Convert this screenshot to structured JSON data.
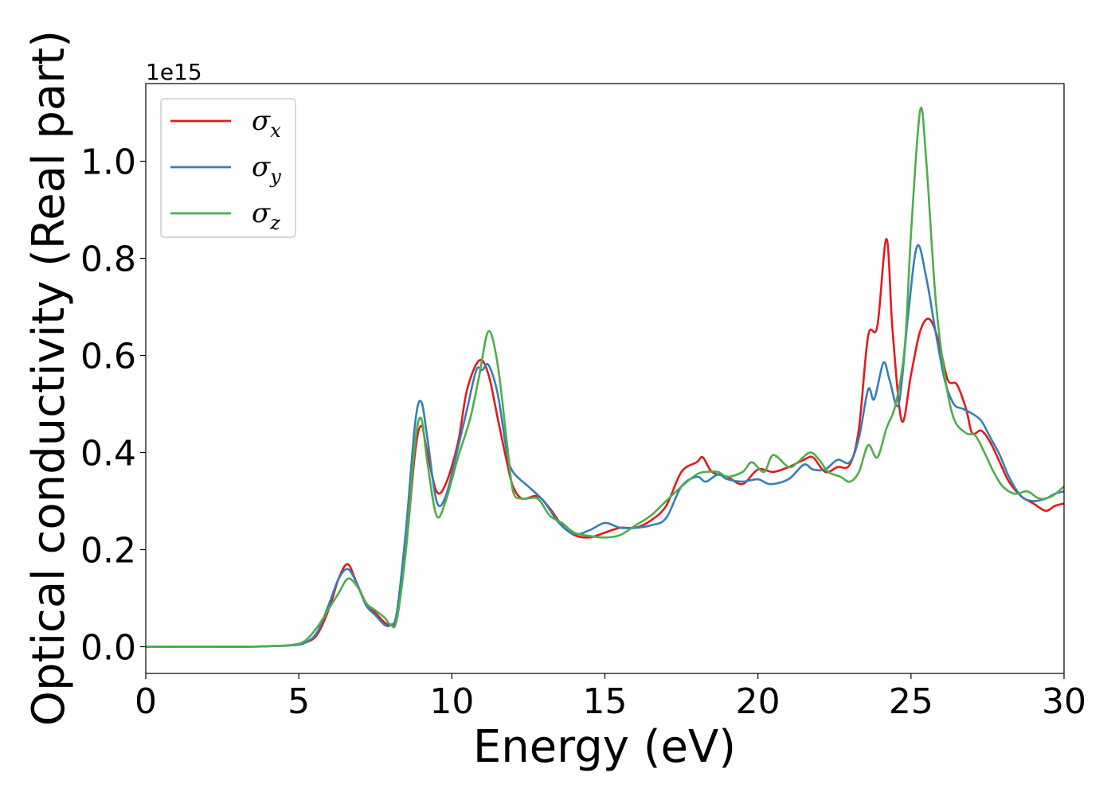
{
  "chart_data": {
    "type": "line",
    "xlabel": "Energy (eV)",
    "ylabel": "Optical conductivity (Real part)",
    "y_offset_label": "1e15",
    "xlim": [
      0,
      30
    ],
    "ylim": [
      -0.055,
      1.16
    ],
    "x_ticks": [
      0,
      5,
      10,
      15,
      20,
      25,
      30
    ],
    "x_tick_labels": [
      "0",
      "5",
      "10",
      "15",
      "20",
      "25",
      "30"
    ],
    "y_ticks": [
      0.0,
      0.2,
      0.4,
      0.6,
      0.8,
      1.0
    ],
    "y_tick_labels": [
      "0.0",
      "0.2",
      "0.4",
      "0.6",
      "0.8",
      "1.0"
    ],
    "grid": false,
    "legend_position": "top-left",
    "series": [
      {
        "name": "σx",
        "symbol": "σ",
        "subscript": "x",
        "color": "#e41a1c",
        "points": [
          [
            0,
            0
          ],
          [
            3,
            0
          ],
          [
            4,
            0.001
          ],
          [
            4.8,
            0.003
          ],
          [
            5.2,
            0.008
          ],
          [
            5.6,
            0.025
          ],
          [
            6.0,
            0.08
          ],
          [
            6.3,
            0.14
          ],
          [
            6.6,
            0.17
          ],
          [
            6.9,
            0.13
          ],
          [
            7.2,
            0.09
          ],
          [
            7.5,
            0.07
          ],
          [
            7.8,
            0.05
          ],
          [
            8.0,
            0.045
          ],
          [
            8.2,
            0.06
          ],
          [
            8.5,
            0.2
          ],
          [
            8.8,
            0.4
          ],
          [
            9.0,
            0.455
          ],
          [
            9.2,
            0.4
          ],
          [
            9.5,
            0.32
          ],
          [
            9.8,
            0.335
          ],
          [
            10.2,
            0.42
          ],
          [
            10.5,
            0.53
          ],
          [
            10.9,
            0.59
          ],
          [
            11.2,
            0.56
          ],
          [
            11.5,
            0.47
          ],
          [
            11.8,
            0.38
          ],
          [
            12.0,
            0.33
          ],
          [
            12.3,
            0.305
          ],
          [
            12.8,
            0.31
          ],
          [
            13.2,
            0.285
          ],
          [
            13.6,
            0.25
          ],
          [
            14.0,
            0.23
          ],
          [
            14.5,
            0.225
          ],
          [
            15.0,
            0.235
          ],
          [
            15.5,
            0.245
          ],
          [
            16.0,
            0.245
          ],
          [
            16.5,
            0.26
          ],
          [
            17.0,
            0.29
          ],
          [
            17.5,
            0.36
          ],
          [
            18.0,
            0.38
          ],
          [
            18.2,
            0.39
          ],
          [
            18.5,
            0.36
          ],
          [
            19.0,
            0.35
          ],
          [
            19.5,
            0.335
          ],
          [
            20.0,
            0.365
          ],
          [
            20.5,
            0.36
          ],
          [
            21.0,
            0.37
          ],
          [
            21.5,
            0.385
          ],
          [
            21.8,
            0.39
          ],
          [
            22.2,
            0.36
          ],
          [
            22.6,
            0.37
          ],
          [
            23.0,
            0.375
          ],
          [
            23.3,
            0.45
          ],
          [
            23.6,
            0.64
          ],
          [
            23.9,
            0.66
          ],
          [
            24.2,
            0.84
          ],
          [
            24.4,
            0.65
          ],
          [
            24.7,
            0.465
          ],
          [
            25.0,
            0.56
          ],
          [
            25.3,
            0.65
          ],
          [
            25.6,
            0.675
          ],
          [
            25.9,
            0.63
          ],
          [
            26.2,
            0.55
          ],
          [
            26.5,
            0.54
          ],
          [
            26.8,
            0.49
          ],
          [
            27.0,
            0.44
          ],
          [
            27.3,
            0.445
          ],
          [
            27.6,
            0.42
          ],
          [
            27.9,
            0.38
          ],
          [
            28.2,
            0.34
          ],
          [
            28.6,
            0.31
          ],
          [
            29.0,
            0.295
          ],
          [
            29.4,
            0.28
          ],
          [
            29.7,
            0.29
          ],
          [
            30.0,
            0.295
          ]
        ]
      },
      {
        "name": "σy",
        "symbol": "σ",
        "subscript": "y",
        "color": "#377eb8",
        "points": [
          [
            0,
            0
          ],
          [
            3,
            0
          ],
          [
            4,
            0.001
          ],
          [
            4.8,
            0.003
          ],
          [
            5.2,
            0.008
          ],
          [
            5.6,
            0.03
          ],
          [
            6.0,
            0.09
          ],
          [
            6.3,
            0.14
          ],
          [
            6.6,
            0.16
          ],
          [
            6.9,
            0.13
          ],
          [
            7.2,
            0.085
          ],
          [
            7.5,
            0.065
          ],
          [
            7.8,
            0.045
          ],
          [
            8.0,
            0.045
          ],
          [
            8.2,
            0.07
          ],
          [
            8.5,
            0.24
          ],
          [
            8.8,
            0.46
          ],
          [
            9.0,
            0.505
          ],
          [
            9.2,
            0.43
          ],
          [
            9.5,
            0.3
          ],
          [
            9.8,
            0.31
          ],
          [
            10.2,
            0.41
          ],
          [
            10.5,
            0.49
          ],
          [
            10.8,
            0.57
          ],
          [
            11.0,
            0.57
          ],
          [
            11.2,
            0.58
          ],
          [
            11.5,
            0.52
          ],
          [
            11.8,
            0.4
          ],
          [
            12.0,
            0.36
          ],
          [
            12.5,
            0.33
          ],
          [
            13.0,
            0.3
          ],
          [
            13.5,
            0.255
          ],
          [
            14.0,
            0.232
          ],
          [
            14.5,
            0.24
          ],
          [
            15.0,
            0.255
          ],
          [
            15.5,
            0.245
          ],
          [
            16.0,
            0.245
          ],
          [
            16.5,
            0.25
          ],
          [
            17.0,
            0.265
          ],
          [
            17.5,
            0.33
          ],
          [
            18.0,
            0.35
          ],
          [
            18.3,
            0.34
          ],
          [
            18.7,
            0.355
          ],
          [
            19.0,
            0.345
          ],
          [
            19.5,
            0.34
          ],
          [
            20.0,
            0.345
          ],
          [
            20.4,
            0.335
          ],
          [
            21.0,
            0.345
          ],
          [
            21.5,
            0.375
          ],
          [
            21.8,
            0.365
          ],
          [
            22.2,
            0.365
          ],
          [
            22.6,
            0.385
          ],
          [
            23.0,
            0.38
          ],
          [
            23.3,
            0.43
          ],
          [
            23.6,
            0.53
          ],
          [
            23.8,
            0.51
          ],
          [
            24.1,
            0.585
          ],
          [
            24.3,
            0.55
          ],
          [
            24.6,
            0.5
          ],
          [
            24.9,
            0.68
          ],
          [
            25.2,
            0.825
          ],
          [
            25.5,
            0.76
          ],
          [
            25.8,
            0.65
          ],
          [
            26.1,
            0.55
          ],
          [
            26.4,
            0.5
          ],
          [
            26.7,
            0.49
          ],
          [
            27.0,
            0.48
          ],
          [
            27.3,
            0.465
          ],
          [
            27.6,
            0.43
          ],
          [
            27.9,
            0.395
          ],
          [
            28.2,
            0.35
          ],
          [
            28.6,
            0.31
          ],
          [
            29.0,
            0.3
          ],
          [
            29.4,
            0.305
          ],
          [
            29.7,
            0.315
          ],
          [
            30.0,
            0.32
          ]
        ]
      },
      {
        "name": "σz",
        "symbol": "σ",
        "subscript": "z",
        "color": "#4daf4a",
        "points": [
          [
            0,
            0
          ],
          [
            3,
            0
          ],
          [
            4,
            0.001
          ],
          [
            4.8,
            0.004
          ],
          [
            5.2,
            0.012
          ],
          [
            5.6,
            0.04
          ],
          [
            6.0,
            0.08
          ],
          [
            6.3,
            0.11
          ],
          [
            6.6,
            0.14
          ],
          [
            6.9,
            0.125
          ],
          [
            7.2,
            0.09
          ],
          [
            7.5,
            0.075
          ],
          [
            7.8,
            0.06
          ],
          [
            8.0,
            0.045
          ],
          [
            8.2,
            0.055
          ],
          [
            8.5,
            0.2
          ],
          [
            8.8,
            0.42
          ],
          [
            9.0,
            0.47
          ],
          [
            9.2,
            0.38
          ],
          [
            9.5,
            0.27
          ],
          [
            9.8,
            0.3
          ],
          [
            10.2,
            0.39
          ],
          [
            10.6,
            0.47
          ],
          [
            10.9,
            0.56
          ],
          [
            11.2,
            0.65
          ],
          [
            11.5,
            0.58
          ],
          [
            11.8,
            0.42
          ],
          [
            12.0,
            0.32
          ],
          [
            12.3,
            0.305
          ],
          [
            12.8,
            0.305
          ],
          [
            13.2,
            0.27
          ],
          [
            13.6,
            0.255
          ],
          [
            14.0,
            0.235
          ],
          [
            14.5,
            0.228
          ],
          [
            15.0,
            0.225
          ],
          [
            15.5,
            0.23
          ],
          [
            16.0,
            0.25
          ],
          [
            16.5,
            0.27
          ],
          [
            17.0,
            0.3
          ],
          [
            17.5,
            0.33
          ],
          [
            18.0,
            0.355
          ],
          [
            18.3,
            0.36
          ],
          [
            18.7,
            0.36
          ],
          [
            19.0,
            0.35
          ],
          [
            19.5,
            0.36
          ],
          [
            19.8,
            0.38
          ],
          [
            20.2,
            0.36
          ],
          [
            20.5,
            0.395
          ],
          [
            21.0,
            0.37
          ],
          [
            21.3,
            0.38
          ],
          [
            21.7,
            0.4
          ],
          [
            22.0,
            0.385
          ],
          [
            22.3,
            0.36
          ],
          [
            22.7,
            0.35
          ],
          [
            23.0,
            0.34
          ],
          [
            23.3,
            0.36
          ],
          [
            23.6,
            0.415
          ],
          [
            23.9,
            0.39
          ],
          [
            24.2,
            0.45
          ],
          [
            24.5,
            0.5
          ],
          [
            24.8,
            0.62
          ],
          [
            25.0,
            0.85
          ],
          [
            25.3,
            1.105
          ],
          [
            25.5,
            1.0
          ],
          [
            25.8,
            0.72
          ],
          [
            26.1,
            0.56
          ],
          [
            26.4,
            0.47
          ],
          [
            26.8,
            0.44
          ],
          [
            27.1,
            0.435
          ],
          [
            27.4,
            0.4
          ],
          [
            27.7,
            0.36
          ],
          [
            28.0,
            0.33
          ],
          [
            28.4,
            0.315
          ],
          [
            28.8,
            0.32
          ],
          [
            29.2,
            0.305
          ],
          [
            29.6,
            0.31
          ],
          [
            30.0,
            0.33
          ]
        ]
      }
    ]
  }
}
